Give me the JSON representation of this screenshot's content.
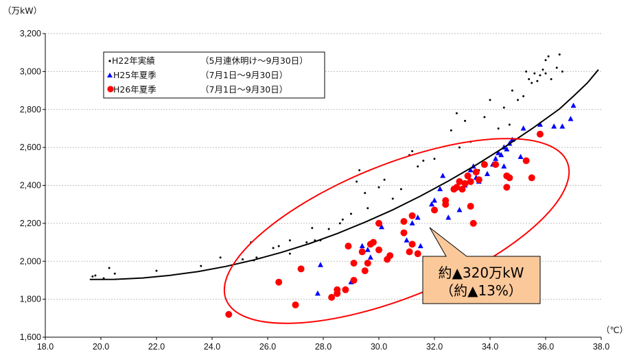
{
  "chart_data": {
    "type": "scatter",
    "title": "",
    "ylabel": "（万kW）",
    "xlabel": "（℃）",
    "xlim": [
      18.0,
      38.0
    ],
    "ylim": [
      1600,
      3200
    ],
    "xticks": [
      "18.0",
      "20.0",
      "22.0",
      "24.0",
      "26.0",
      "28.0",
      "30.0",
      "32.0",
      "34.0",
      "36.0",
      "38.0"
    ],
    "yticks": [
      "1,600",
      "1,800",
      "2,000",
      "2,200",
      "2,400",
      "2,600",
      "2,800",
      "3,000",
      "3,200"
    ],
    "grid": "horizontal",
    "legend_position": "top-left",
    "series": [
      {
        "name": "H22年実績",
        "period": "（5月連休明け〜9月30日）",
        "marker": "small-dot",
        "color": "#000000",
        "points": [
          [
            19.7,
            1920
          ],
          [
            19.8,
            1925
          ],
          [
            20.1,
            1910
          ],
          [
            20.3,
            1965
          ],
          [
            20.5,
            1935
          ],
          [
            22.0,
            1950
          ],
          [
            23.6,
            1975
          ],
          [
            24.3,
            2020
          ],
          [
            25.1,
            2010
          ],
          [
            25.4,
            2100
          ],
          [
            25.6,
            2020
          ],
          [
            25.5,
            2005
          ],
          [
            26.2,
            2070
          ],
          [
            26.4,
            2080
          ],
          [
            26.8,
            2110
          ],
          [
            26.8,
            2040
          ],
          [
            27.4,
            2100
          ],
          [
            27.6,
            2175
          ],
          [
            27.7,
            2110
          ],
          [
            27.9,
            2110
          ],
          [
            28.2,
            2170
          ],
          [
            28.6,
            2200
          ],
          [
            28.7,
            2220
          ],
          [
            29.0,
            2250
          ],
          [
            29.2,
            2420
          ],
          [
            29.3,
            2480
          ],
          [
            29.5,
            2360
          ],
          [
            29.6,
            2280
          ],
          [
            30.0,
            2390
          ],
          [
            30.2,
            2430
          ],
          [
            30.5,
            2330
          ],
          [
            30.8,
            2380
          ],
          [
            31.1,
            2560
          ],
          [
            31.2,
            2580
          ],
          [
            31.4,
            2500
          ],
          [
            31.6,
            2530
          ],
          [
            32.0,
            2540
          ],
          [
            32.3,
            2450
          ],
          [
            32.6,
            2690
          ],
          [
            32.9,
            2600
          ],
          [
            33.3,
            2630
          ],
          [
            33.6,
            2480
          ],
          [
            33.8,
            2760
          ],
          [
            34.0,
            2850
          ],
          [
            34.3,
            2700
          ],
          [
            34.5,
            2810
          ],
          [
            34.8,
            2900
          ],
          [
            35.0,
            2850
          ],
          [
            35.2,
            2870
          ],
          [
            35.3,
            3000
          ],
          [
            35.4,
            2960
          ],
          [
            35.5,
            2940
          ],
          [
            35.6,
            2990
          ],
          [
            35.7,
            2950
          ],
          [
            35.8,
            2980
          ],
          [
            35.9,
            3010
          ],
          [
            36.0,
            2990
          ],
          [
            36.0,
            3060
          ],
          [
            36.1,
            3080
          ],
          [
            36.2,
            2960
          ],
          [
            36.4,
            3020
          ],
          [
            36.5,
            3090
          ],
          [
            36.6,
            3000
          ],
          [
            32.8,
            2780
          ],
          [
            33.1,
            2740
          ],
          [
            34.7,
            2720
          ]
        ]
      },
      {
        "name": "H25年夏季",
        "period": "（7月1日〜9月30日）",
        "marker": "triangle",
        "color": "#0000ff",
        "points": [
          [
            27.8,
            1830
          ],
          [
            27.9,
            1980
          ],
          [
            29.0,
            1890
          ],
          [
            29.4,
            2080
          ],
          [
            29.6,
            2060
          ],
          [
            29.7,
            2020
          ],
          [
            30.1,
            2180
          ],
          [
            31.0,
            2110
          ],
          [
            31.2,
            2200
          ],
          [
            31.4,
            2230
          ],
          [
            31.5,
            2080
          ],
          [
            31.9,
            2300
          ],
          [
            32.0,
            2320
          ],
          [
            32.2,
            2380
          ],
          [
            32.3,
            2450
          ],
          [
            32.5,
            2230
          ],
          [
            32.9,
            2270
          ],
          [
            33.1,
            2400
          ],
          [
            33.3,
            2480
          ],
          [
            33.4,
            2500
          ],
          [
            33.5,
            2440
          ],
          [
            33.6,
            2420
          ],
          [
            33.9,
            2460
          ],
          [
            34.1,
            2510
          ],
          [
            34.2,
            2540
          ],
          [
            34.3,
            2570
          ],
          [
            34.4,
            2560
          ],
          [
            34.5,
            2600
          ],
          [
            34.6,
            2590
          ],
          [
            34.7,
            2620
          ],
          [
            34.8,
            2640
          ],
          [
            34.5,
            2500
          ],
          [
            35.1,
            2550
          ],
          [
            35.2,
            2700
          ],
          [
            35.8,
            2720
          ],
          [
            36.3,
            2710
          ],
          [
            36.6,
            2710
          ],
          [
            36.9,
            2750
          ],
          [
            37.0,
            2820
          ]
        ]
      },
      {
        "name": "H26年夏季",
        "period": "（7月1日〜9月30日）",
        "marker": "circle",
        "color": "#ff0000",
        "points": [
          [
            24.6,
            1720
          ],
          [
            26.4,
            1890
          ],
          [
            27.0,
            1770
          ],
          [
            27.2,
            1960
          ],
          [
            28.3,
            1810
          ],
          [
            28.5,
            1850
          ],
          [
            28.5,
            1830
          ],
          [
            28.8,
            1850
          ],
          [
            28.9,
            2080
          ],
          [
            29.1,
            1990
          ],
          [
            29.1,
            1900
          ],
          [
            29.4,
            2050
          ],
          [
            29.5,
            1950
          ],
          [
            29.6,
            1990
          ],
          [
            29.7,
            2090
          ],
          [
            29.8,
            2100
          ],
          [
            30.0,
            2200
          ],
          [
            30.0,
            2060
          ],
          [
            30.3,
            2010
          ],
          [
            30.4,
            2030
          ],
          [
            30.9,
            2210
          ],
          [
            30.9,
            2150
          ],
          [
            31.1,
            2050
          ],
          [
            31.2,
            2240
          ],
          [
            31.2,
            2090
          ],
          [
            31.4,
            2040
          ],
          [
            32.0,
            2270
          ],
          [
            32.4,
            2300
          ],
          [
            32.4,
            2320
          ],
          [
            32.7,
            2380
          ],
          [
            32.8,
            2390
          ],
          [
            32.9,
            2420
          ],
          [
            33.1,
            2410
          ],
          [
            33.3,
            2420
          ],
          [
            33.3,
            2290
          ],
          [
            33.4,
            2200
          ],
          [
            33.5,
            2470
          ],
          [
            33.6,
            2430
          ],
          [
            33.8,
            2510
          ],
          [
            34.2,
            2510
          ],
          [
            34.6,
            2390
          ],
          [
            34.6,
            2450
          ],
          [
            34.7,
            2440
          ],
          [
            35.3,
            2530
          ],
          [
            35.5,
            2440
          ],
          [
            35.8,
            2670
          ],
          [
            33.2,
            2450
          ],
          [
            33.0,
            2380
          ]
        ]
      },
      {
        "name": "H22 trend",
        "marker": "line",
        "color": "#000000",
        "points": [
          [
            19.6,
            1904
          ],
          [
            20.5,
            1905
          ],
          [
            21.5,
            1912
          ],
          [
            22.5,
            1926
          ],
          [
            23.5,
            1946
          ],
          [
            24.5,
            1973
          ],
          [
            25.5,
            2007
          ],
          [
            26.5,
            2047
          ],
          [
            27.5,
            2093
          ],
          [
            28.5,
            2146
          ],
          [
            29.5,
            2206
          ],
          [
            30.5,
            2271
          ],
          [
            31.5,
            2344
          ],
          [
            32.5,
            2423
          ],
          [
            33.5,
            2508
          ],
          [
            34.5,
            2600
          ],
          [
            35.5,
            2698
          ],
          [
            36.5,
            2803
          ],
          [
            37.0,
            2870
          ],
          [
            37.5,
            2940
          ],
          [
            37.7,
            2975
          ],
          [
            37.9,
            3010
          ]
        ]
      }
    ],
    "annotation": {
      "line1": "約▲320万kW",
      "line2": "（約▲13%）",
      "ellipse_color": "#ff0000",
      "box_fill": "#fbc89a"
    }
  }
}
